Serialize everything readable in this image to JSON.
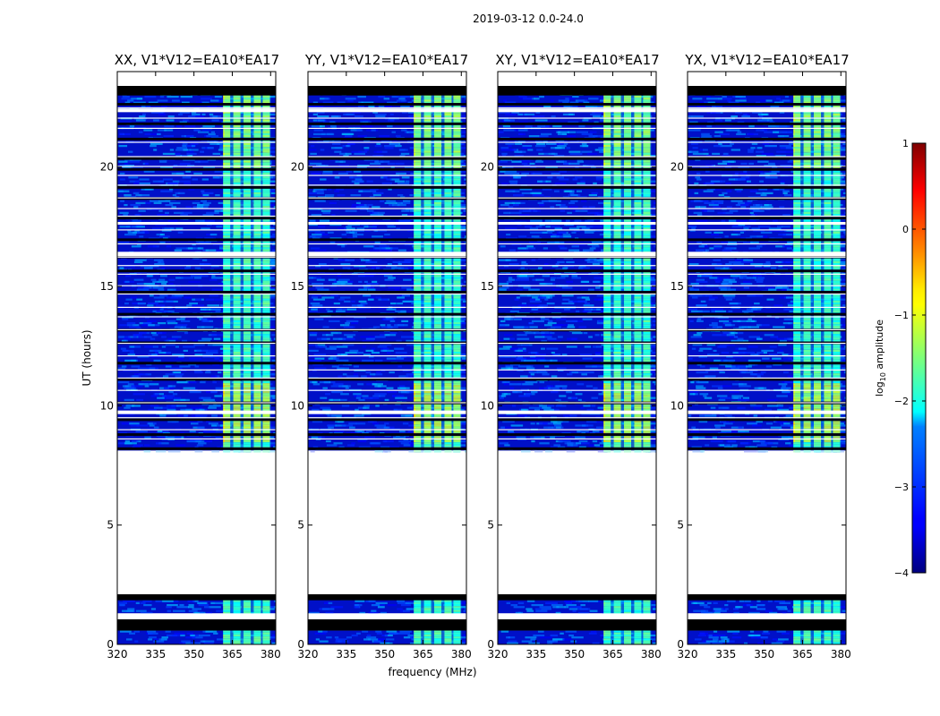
{
  "figure": {
    "suptitle": "2019-03-12 0.0-24.0"
  },
  "chart_data": {
    "type": "heatmap",
    "panels": [
      {
        "title": "XX, V1*V12=EA10*EA17",
        "pol": "XX"
      },
      {
        "title": "YY, V1*V12=EA10*EA17",
        "pol": "YY"
      },
      {
        "title": "XY, V1*V12=EA10*EA17",
        "pol": "XY"
      },
      {
        "title": "YX, V1*V12=EA10*EA17",
        "pol": "YX"
      }
    ],
    "xlabel": "frequency (MHz)",
    "ylabel": "UT (hours)",
    "xlim": [
      320,
      382
    ],
    "ylim": [
      0,
      24
    ],
    "xticks": [
      320,
      335,
      350,
      365,
      380
    ],
    "yticks": [
      0,
      5,
      10,
      15,
      20
    ],
    "colorbar": {
      "label_prefix": "log",
      "label_sub": "10",
      "label_suffix": " amplitude",
      "range": [
        -4,
        1
      ],
      "ticks": [
        -4,
        -3,
        -2,
        -1,
        0,
        1
      ],
      "tick_labels": [
        "−4",
        "−3",
        "−2",
        "−1",
        "0",
        "1"
      ],
      "colormap": "jet"
    },
    "data_gaps_ut": [
      [
        2.1,
        8.1
      ],
      [
        1.05,
        1.3
      ],
      [
        0.58,
        0.9
      ]
    ],
    "bright_band_mhz": [
      362,
      380
    ],
    "notes": "Dynamic spectra of log10 amplitude vs frequency and UT; bright RFI band roughly 362-380 MHz"
  }
}
